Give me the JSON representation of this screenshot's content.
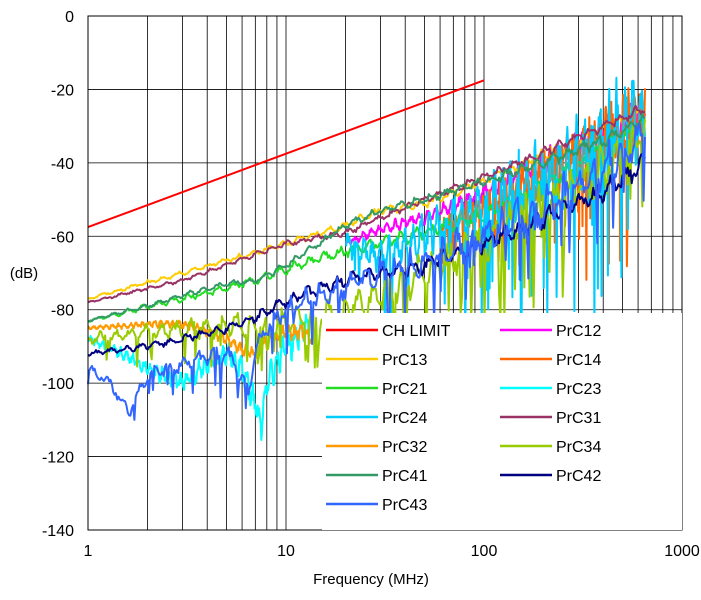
{
  "chart_data": {
    "type": "line",
    "title": "",
    "xlabel": "Frequency (MHz)",
    "ylabel": "(dB)",
    "x_scale": "log",
    "xlim": [
      1,
      1000
    ],
    "ylim": [
      -140,
      0
    ],
    "x_ticks": [
      1,
      10,
      100,
      1000
    ],
    "x_tick_labels": [
      "1",
      "10",
      "100",
      "1000"
    ],
    "y_ticks": [
      0,
      -20,
      -40,
      -60,
      -80,
      -100,
      -120,
      -140
    ],
    "y_tick_labels": [
      "0",
      "-20",
      "-40",
      "-60",
      "-80",
      "-100",
      "-120",
      "-140"
    ],
    "grid": true,
    "legend_position": "bottom-right",
    "series": [
      {
        "name": "CH LIMIT",
        "color": "#ff0000",
        "x": [
          1,
          100
        ],
        "y": [
          -57.5,
          -17.5
        ],
        "noise": 0
      },
      {
        "name": "PrC12",
        "color": "#ff00ff",
        "x": [
          20,
          30,
          50,
          100,
          200,
          400,
          650
        ],
        "y": [
          -62,
          -58,
          -55,
          -48,
          -40,
          -32,
          -26
        ],
        "noise": 2.5
      },
      {
        "name": "PrC13",
        "color": "#ffcc00",
        "x": [
          1,
          3,
          10,
          20,
          30,
          50,
          100,
          200,
          400,
          650
        ],
        "y": [
          -77,
          -70,
          -62,
          -57,
          -53,
          -51,
          -45,
          -38,
          -31,
          -24
        ],
        "noise": 1.0
      },
      {
        "name": "PrC14",
        "color": "#ff6600",
        "x": [
          60,
          100,
          200,
          400,
          650
        ],
        "y": [
          -58,
          -52,
          -44,
          -35,
          -28
        ],
        "noise": 6
      },
      {
        "name": "PrC21",
        "color": "#22dd22",
        "x": [
          1,
          3,
          5,
          7,
          10,
          20,
          30,
          50,
          100,
          200,
          400,
          650
        ],
        "y": [
          -83,
          -77,
          -74,
          -72,
          -69,
          -64,
          -62,
          -59,
          -54,
          -46,
          -37,
          -30
        ],
        "noise": 1.5
      },
      {
        "name": "PrC23",
        "color": "#00ffff",
        "x": [
          1,
          1.5,
          2,
          3,
          4,
          5,
          6,
          7,
          7.5,
          8,
          10,
          13
        ],
        "y": [
          -88,
          -92,
          -96,
          -100,
          -95,
          -92,
          -96,
          -106,
          -112,
          -100,
          -90,
          -85
        ],
        "noise": 2.5
      },
      {
        "name": "PrC24",
        "color": "#00ccff",
        "x": [
          20,
          30,
          50,
          100,
          200,
          400,
          650
        ],
        "y": [
          -62,
          -66,
          -60,
          -52,
          -44,
          -35,
          -27
        ],
        "noise": 8
      },
      {
        "name": "PrC31",
        "color": "#993366",
        "x": [
          1,
          3,
          10,
          20,
          30,
          50,
          100,
          200,
          400,
          650
        ],
        "y": [
          -78,
          -72,
          -62,
          -59,
          -55,
          -50,
          -44,
          -37,
          -30,
          -25
        ],
        "noise": 0.8
      },
      {
        "name": "PrC32",
        "color": "#ff9900",
        "x": [
          1,
          2,
          3,
          4,
          5,
          6,
          7,
          8,
          10,
          12,
          13.5
        ],
        "y": [
          -85,
          -84,
          -84,
          -86,
          -88,
          -91,
          -92,
          -89,
          -86,
          -86,
          -88
        ],
        "noise": 1.2
      },
      {
        "name": "PrC34",
        "color": "#99cc00",
        "x": [
          1,
          2,
          4,
          6,
          8,
          10,
          15,
          20,
          30,
          50,
          100,
          200,
          400,
          650
        ],
        "y": [
          -88,
          -86,
          -85,
          -84,
          -84,
          -83,
          -82,
          -80,
          -76,
          -70,
          -62,
          -52,
          -42,
          -32
        ],
        "noise": 4
      },
      {
        "name": "PrC41",
        "color": "#339966",
        "x": [
          1,
          2,
          3,
          5,
          7,
          10,
          20,
          30,
          50,
          100,
          200,
          400,
          650
        ],
        "y": [
          -83,
          -79,
          -76,
          -73,
          -72,
          -68,
          -57,
          -53,
          -50,
          -45,
          -40,
          -34,
          -28
        ],
        "noise": 1.0
      },
      {
        "name": "PrC42",
        "color": "#000080",
        "x": [
          1,
          2,
          3,
          5,
          7,
          10,
          15,
          20,
          30,
          50,
          100,
          200,
          400,
          650
        ],
        "y": [
          -92,
          -90,
          -88,
          -85,
          -82,
          -78,
          -74,
          -72,
          -70,
          -68,
          -62,
          -55,
          -48,
          -40
        ],
        "noise": 1.8
      },
      {
        "name": "PrC43",
        "color": "#3366ff",
        "x": [
          1,
          1.3,
          1.6,
          2,
          3,
          4,
          5,
          6,
          6.5,
          7,
          8,
          10,
          15,
          20,
          30,
          50,
          100,
          200,
          400,
          650
        ],
        "y": [
          -96,
          -100,
          -108,
          -98,
          -95,
          -93,
          -92,
          -98,
          -102,
          -92,
          -85,
          -80,
          -76,
          -74,
          -70,
          -67,
          -60,
          -52,
          -42,
          -32
        ],
        "noise": 3.5
      }
    ]
  }
}
